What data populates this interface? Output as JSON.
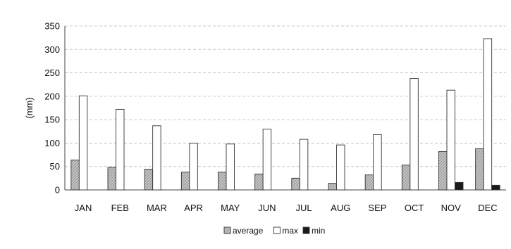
{
  "chart_data": {
    "type": "bar",
    "categories": [
      "JAN",
      "FEB",
      "MAR",
      "APR",
      "MAY",
      "JUN",
      "JUL",
      "AUG",
      "SEP",
      "OCT",
      "NOV",
      "DEC"
    ],
    "series": [
      {
        "name": "average",
        "values": [
          64,
          48,
          44,
          38,
          38,
          34,
          25,
          14,
          32,
          53,
          82,
          88
        ],
        "color": "#bdbdbd",
        "pattern": "hatched"
      },
      {
        "name": "max",
        "values": [
          201,
          172,
          137,
          100,
          98,
          130,
          108,
          96,
          118,
          238,
          213,
          323
        ],
        "color": "#ffffff"
      },
      {
        "name": "min",
        "values": [
          0,
          0,
          0,
          0,
          0,
          0,
          0,
          0,
          0,
          0,
          16,
          10
        ],
        "color": "#1a1a1a"
      }
    ],
    "ylabel": "(mm)",
    "ylim": [
      0,
      350
    ],
    "yticks": [
      "0",
      "50",
      "100",
      "150",
      "200",
      "250",
      "300",
      "350"
    ],
    "grid": true,
    "legend_position": "bottom-center"
  }
}
